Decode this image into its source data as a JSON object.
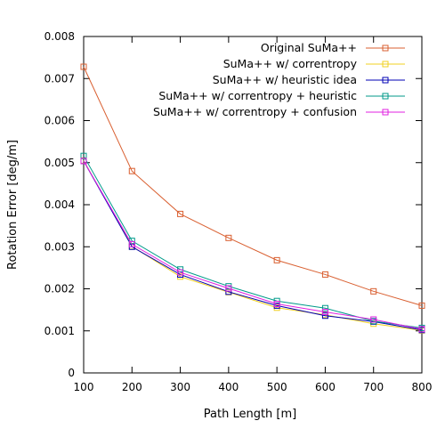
{
  "chart_data": {
    "type": "line",
    "title": "",
    "xlabel": "Path Length [m]",
    "ylabel": "Rotation Error [deg/m]",
    "x": [
      100,
      200,
      300,
      400,
      500,
      600,
      700,
      800
    ],
    "xlim": [
      100,
      800
    ],
    "ylim": [
      0,
      0.008
    ],
    "xticks": [
      "100",
      "200",
      "300",
      "400",
      "500",
      "600",
      "700",
      "800"
    ],
    "yticks": [
      "0",
      "0.001",
      "0.002",
      "0.003",
      "0.004",
      "0.005",
      "0.006",
      "0.007",
      "0.008"
    ],
    "xtick_values": [
      100,
      200,
      300,
      400,
      500,
      600,
      700,
      800
    ],
    "ytick_values": [
      0,
      0.001,
      0.002,
      0.003,
      0.004,
      0.005,
      0.006,
      0.007,
      0.008
    ],
    "grid": false,
    "legend_position": "top-right",
    "marker": "open-square",
    "series": [
      {
        "name": "Original SuMa++",
        "color": "#d95f30",
        "values": [
          0.00728,
          0.0048,
          0.00378,
          0.00321,
          0.00268,
          0.00234,
          0.00194,
          0.0016
        ]
      },
      {
        "name": "SuMa++ w/ correntropy",
        "color": "#f0d020",
        "values": [
          0.00505,
          0.00301,
          0.00229,
          0.00192,
          0.00155,
          0.00138,
          0.00117,
          0.00101
        ]
      },
      {
        "name": "SuMa++ w/ heuristic idea",
        "color": "#0000b4",
        "values": [
          0.00504,
          0.003,
          0.00234,
          0.00193,
          0.0016,
          0.00136,
          0.00122,
          0.00102
        ]
      },
      {
        "name": "SuMa++ w/ correntropy + heuristic",
        "color": "#009a8a",
        "values": [
          0.00516,
          0.00314,
          0.00246,
          0.00206,
          0.00171,
          0.00154,
          0.00123,
          0.00107
        ]
      },
      {
        "name": "SuMa++ w/ correntropy + confusion",
        "color": "#e020e0",
        "values": [
          0.00504,
          0.00306,
          0.00239,
          0.00201,
          0.00164,
          0.00145,
          0.00127,
          0.00104
        ]
      }
    ]
  }
}
